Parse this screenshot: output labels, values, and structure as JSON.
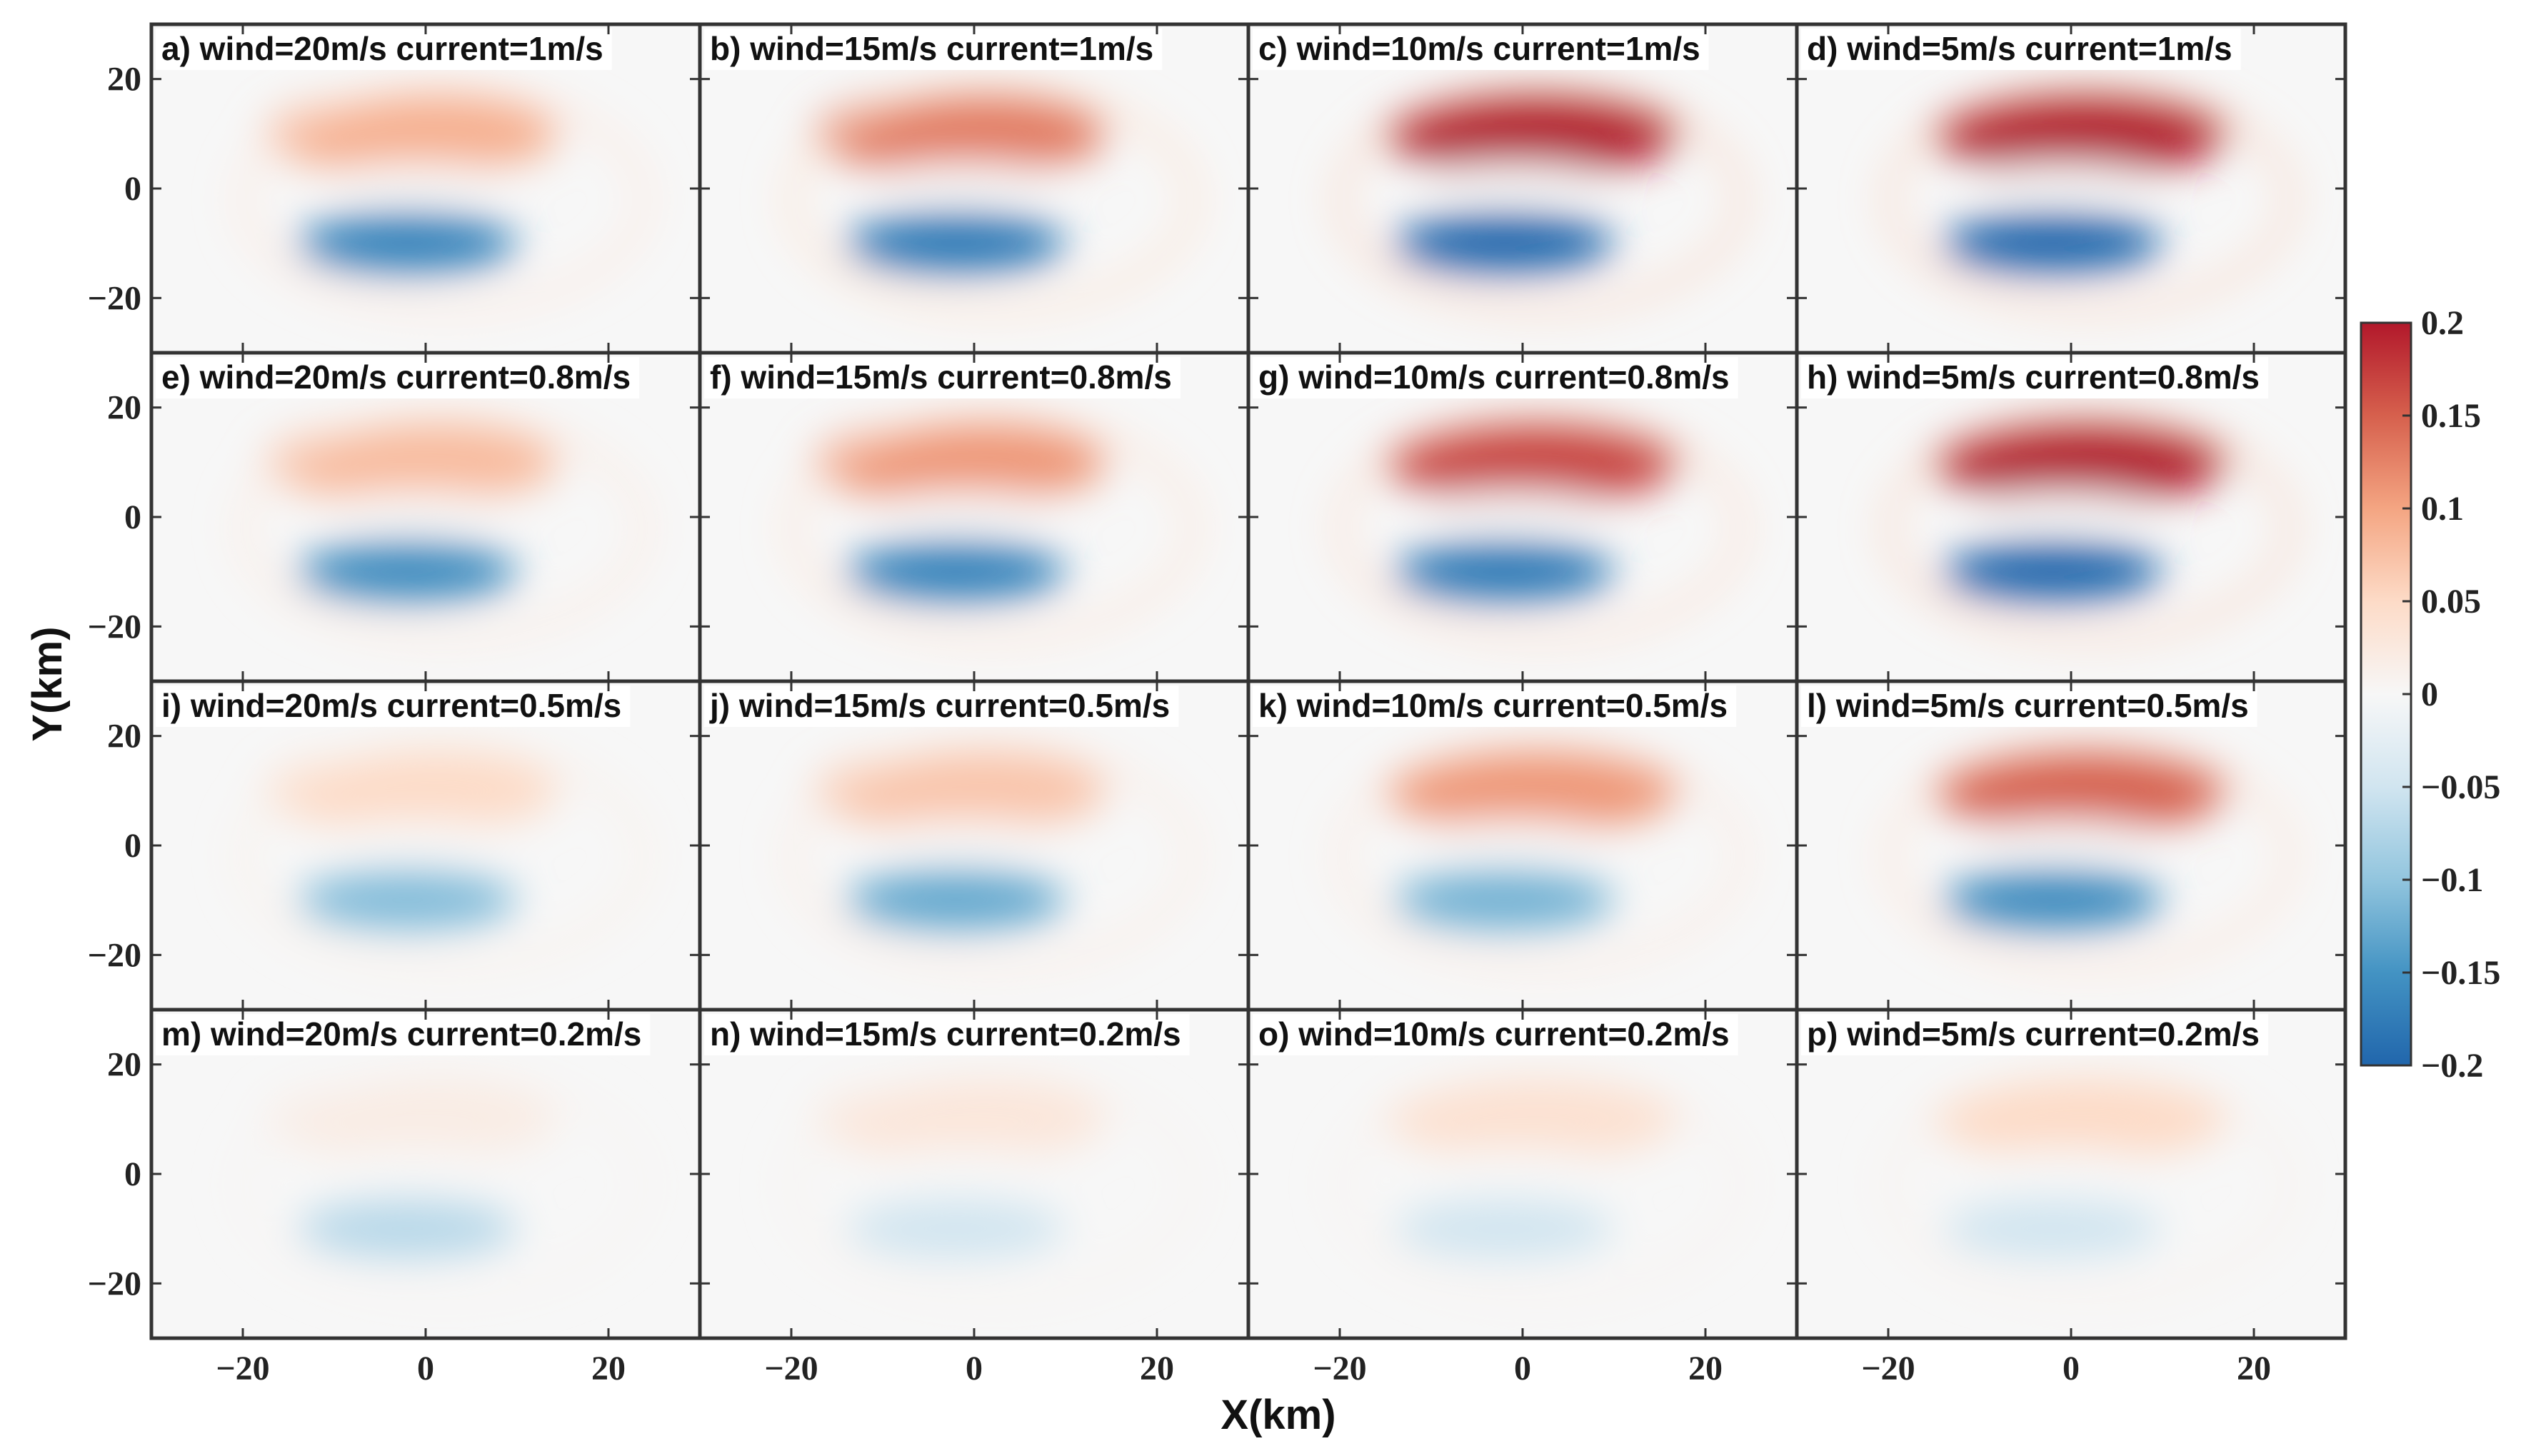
{
  "chart_data": {
    "type": "heatmap",
    "layout": "4x4 panel grid with shared axes and one colorbar",
    "xlabel": "X(km)",
    "ylabel": "Y(km)",
    "xlim": [
      -30,
      30
    ],
    "ylim": [
      -30,
      30
    ],
    "xticks": [
      -20,
      0,
      20
    ],
    "yticks": [
      20,
      0,
      -20
    ],
    "xtick_labels": [
      "−20",
      "0",
      "20"
    ],
    "ytick_labels": [
      "20",
      "0",
      "−20"
    ],
    "colorbar": {
      "colormap": "RdBu_r",
      "range": [
        -0.2,
        0.2
      ],
      "ticks": [
        0.2,
        0.15,
        0.1,
        0.05,
        0,
        -0.05,
        -0.1,
        -0.15,
        -0.2
      ],
      "tick_labels": [
        "0.2",
        "0.15",
        "0.1",
        "0.05",
        "0",
        "−0.05",
        "−0.1",
        "−0.15",
        "−0.2"
      ],
      "colors": [
        "#b2182b",
        "#d6604d",
        "#f4a582",
        "#fddbc7",
        "#f7f7f7",
        "#d1e5f0",
        "#92c5de",
        "#4393c3",
        "#2166ac"
      ]
    },
    "rows": [
      "current=1m/s",
      "current=0.8m/s",
      "current=0.5m/s",
      "current=0.2m/s"
    ],
    "columns": [
      "wind=20m/s",
      "wind=15m/s",
      "wind=10m/s",
      "wind=5m/s"
    ],
    "panels": [
      {
        "label": "a) wind=20m/s current=1m/s",
        "wind": 20,
        "current": 1,
        "pos_max": 0.09,
        "neg_min": -0.17
      },
      {
        "label": "b) wind=15m/s current=1m/s",
        "wind": 15,
        "current": 1,
        "pos_max": 0.13,
        "neg_min": -0.18
      },
      {
        "label": "c) wind=10m/s current=1m/s",
        "wind": 10,
        "current": 1,
        "pos_max": 0.2,
        "neg_min": -0.2
      },
      {
        "label": "d) wind=5m/s current=1m/s",
        "wind": 5,
        "current": 1,
        "pos_max": 0.2,
        "neg_min": -0.2
      },
      {
        "label": "e) wind=20m/s current=0.8m/s",
        "wind": 20,
        "current": 0.8,
        "pos_max": 0.08,
        "neg_min": -0.16
      },
      {
        "label": "f) wind=15m/s current=0.8m/s",
        "wind": 15,
        "current": 0.8,
        "pos_max": 0.11,
        "neg_min": -0.17
      },
      {
        "label": "g) wind=10m/s current=0.8m/s",
        "wind": 10,
        "current": 0.8,
        "pos_max": 0.17,
        "neg_min": -0.18
      },
      {
        "label": "h) wind=5m/s current=0.8m/s",
        "wind": 5,
        "current": 0.8,
        "pos_max": 0.2,
        "neg_min": -0.2
      },
      {
        "label": "i) wind=20m/s current=0.5m/s",
        "wind": 20,
        "current": 0.5,
        "pos_max": 0.05,
        "neg_min": -0.11
      },
      {
        "label": "j) wind=15m/s current=0.5m/s",
        "wind": 15,
        "current": 0.5,
        "pos_max": 0.07,
        "neg_min": -0.13
      },
      {
        "label": "k) wind=10m/s current=0.5m/s",
        "wind": 10,
        "current": 0.5,
        "pos_max": 0.11,
        "neg_min": -0.12
      },
      {
        "label": "l) wind=5m/s current=0.5m/s",
        "wind": 5,
        "current": 0.5,
        "pos_max": 0.15,
        "neg_min": -0.16
      },
      {
        "label": "m) wind=20m/s current=0.2m/s",
        "wind": 20,
        "current": 0.2,
        "pos_max": 0.02,
        "neg_min": -0.07
      },
      {
        "label": "n) wind=15m/s current=0.2m/s",
        "wind": 15,
        "current": 0.2,
        "pos_max": 0.03,
        "neg_min": -0.05
      },
      {
        "label": "o) wind=10m/s current=0.2m/s",
        "wind": 10,
        "current": 0.2,
        "pos_max": 0.04,
        "neg_min": -0.05
      },
      {
        "label": "p) wind=5m/s current=0.2m/s",
        "wind": 5,
        "current": 0.2,
        "pos_max": 0.05,
        "neg_min": -0.05
      }
    ]
  }
}
